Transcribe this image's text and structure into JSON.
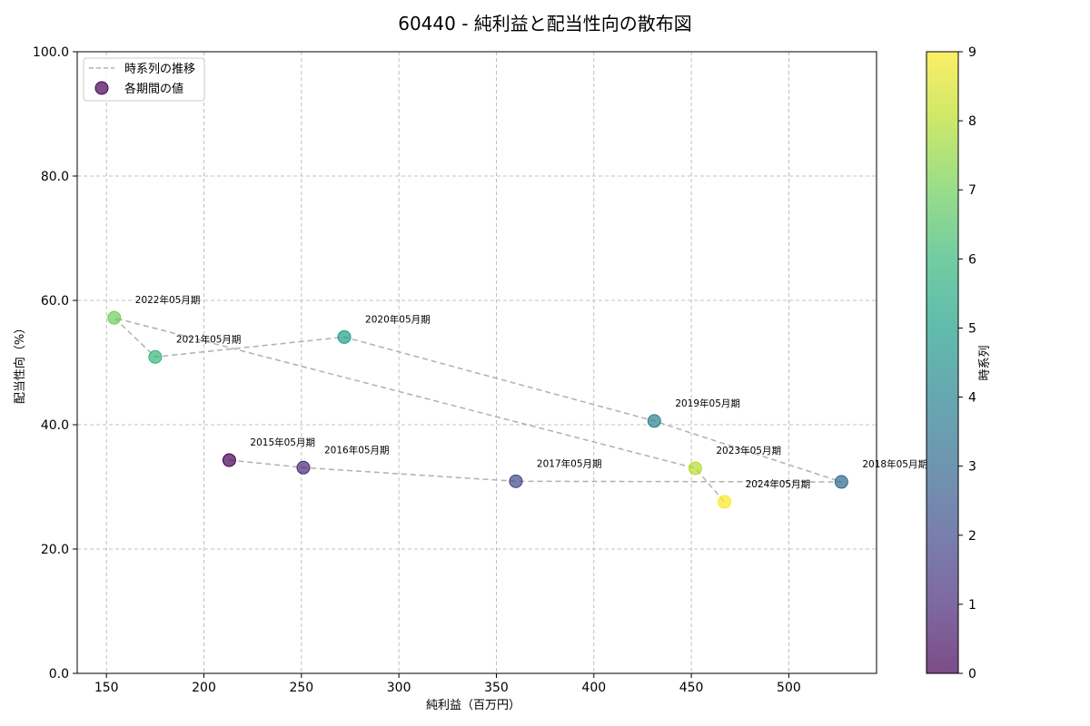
{
  "chart_data": {
    "type": "scatter",
    "title": "60440 - 純利益と配当性向の散布図",
    "xlabel": "純利益（百万円）",
    "ylabel": "配当性向（%）",
    "xlim": [
      135,
      545
    ],
    "ylim": [
      0,
      100
    ],
    "xticks": [
      150,
      200,
      250,
      300,
      350,
      400,
      450,
      500
    ],
    "yticks": [
      "0.0",
      "20.0",
      "40.0",
      "60.0",
      "80.0",
      "100.0"
    ],
    "grid": true,
    "legend": {
      "position": "top-left",
      "line_label": "時系列の推移",
      "point_label": "各期間の値"
    },
    "colorbar": {
      "label": "時系列",
      "min": 0,
      "max": 9,
      "ticks": [
        "0",
        "1",
        "2",
        "3",
        "4",
        "5",
        "6",
        "7",
        "8",
        "9"
      ],
      "colormap": "viridis"
    },
    "points": [
      {
        "label": "2015年05月期",
        "x": 213,
        "y": 34.3,
        "t": 0
      },
      {
        "label": "2016年05月期",
        "x": 251,
        "y": 33.1,
        "t": 1
      },
      {
        "label": "2017年05月期",
        "x": 360,
        "y": 30.9,
        "t": 2
      },
      {
        "label": "2018年05月期",
        "x": 527,
        "y": 30.8,
        "t": 3
      },
      {
        "label": "2019年05月期",
        "x": 431,
        "y": 40.6,
        "t": 4
      },
      {
        "label": "2020年05月期",
        "x": 272,
        "y": 54.1,
        "t": 5
      },
      {
        "label": "2021年05月期",
        "x": 175,
        "y": 50.9,
        "t": 6
      },
      {
        "label": "2022年05月期",
        "x": 154,
        "y": 57.2,
        "t": 7
      },
      {
        "label": "2023年05月期",
        "x": 452,
        "y": 33.0,
        "t": 8
      },
      {
        "label": "2024年05月期",
        "x": 467,
        "y": 27.6,
        "t": 9
      }
    ]
  },
  "colors": {
    "line": "#b0b0b0",
    "grid": "#b0b0b0",
    "viridis": [
      "#440154",
      "#482878",
      "#3e4989",
      "#31688e",
      "#26828e",
      "#1f9e89",
      "#35b779",
      "#6ece58",
      "#b5de2b",
      "#fde725"
    ]
  }
}
